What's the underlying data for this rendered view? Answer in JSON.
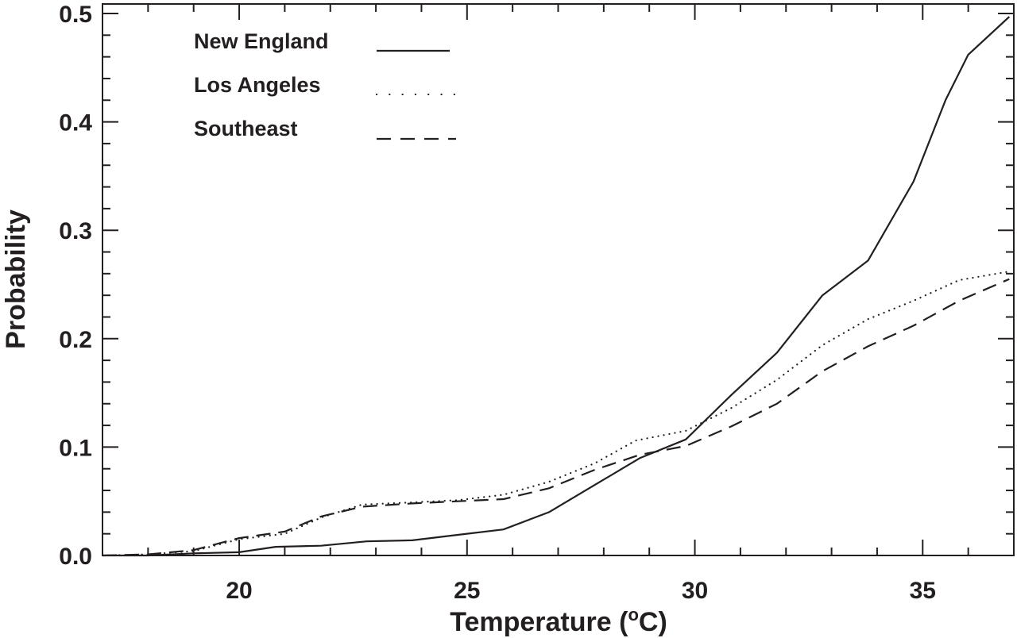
{
  "chart_data": {
    "type": "line",
    "title": "",
    "xlabel": "Temperature (",
    "xlabel_sup": "o",
    "xlabel_tail": "C)",
    "ylabel": "Probability",
    "xlim": [
      17,
      37
    ],
    "ylim": [
      0,
      0.5
    ],
    "x_ticks": [
      20,
      25,
      30,
      35
    ],
    "x_tick_labels": [
      "20",
      "25",
      "30",
      "35"
    ],
    "y_ticks": [
      0,
      0.1,
      0.2,
      0.3,
      0.4,
      0.5
    ],
    "y_tick_labels": [
      "0.0",
      "0.1",
      "0.2",
      "0.3",
      "0.4",
      "0.5"
    ],
    "grid": false,
    "legend_position": "top-left",
    "series": [
      {
        "name": "New England",
        "style": "solid",
        "x": [
          17.0,
          18.0,
          19.0,
          20.0,
          20.8,
          21.8,
          22.8,
          23.8,
          24.8,
          25.8,
          26.8,
          27.8,
          28.8,
          29.8,
          30.8,
          31.8,
          32.8,
          33.8,
          34.8,
          35.5,
          36.0,
          36.9
        ],
        "y": [
          0.0,
          0.0,
          0.002,
          0.003,
          0.008,
          0.009,
          0.013,
          0.014,
          0.019,
          0.024,
          0.04,
          0.065,
          0.09,
          0.107,
          0.148,
          0.187,
          0.24,
          0.272,
          0.345,
          0.42,
          0.462,
          0.497
        ]
      },
      {
        "name": "Los Angeles",
        "style": "dotted",
        "x": [
          17.0,
          18.0,
          19.0,
          20.0,
          21.0,
          21.8,
          22.7,
          23.8,
          24.8,
          25.8,
          26.8,
          27.8,
          28.7,
          29.8,
          30.8,
          31.8,
          32.8,
          33.8,
          34.8,
          35.8,
          36.9
        ],
        "y": [
          0.0,
          0.001,
          0.004,
          0.015,
          0.02,
          0.035,
          0.047,
          0.049,
          0.051,
          0.056,
          0.068,
          0.085,
          0.106,
          0.115,
          0.136,
          0.162,
          0.194,
          0.218,
          0.235,
          0.254,
          0.262
        ]
      },
      {
        "name": "Southeast",
        "style": "dashed",
        "x": [
          17.0,
          18.0,
          19.0,
          20.0,
          21.0,
          21.8,
          22.7,
          23.8,
          24.8,
          25.8,
          26.8,
          27.8,
          28.8,
          29.8,
          30.8,
          31.8,
          32.8,
          33.8,
          34.8,
          35.8,
          36.9
        ],
        "y": [
          0.0,
          0.001,
          0.005,
          0.016,
          0.022,
          0.036,
          0.045,
          0.048,
          0.05,
          0.052,
          0.062,
          0.079,
          0.093,
          0.101,
          0.119,
          0.14,
          0.17,
          0.193,
          0.212,
          0.235,
          0.255
        ]
      }
    ]
  }
}
